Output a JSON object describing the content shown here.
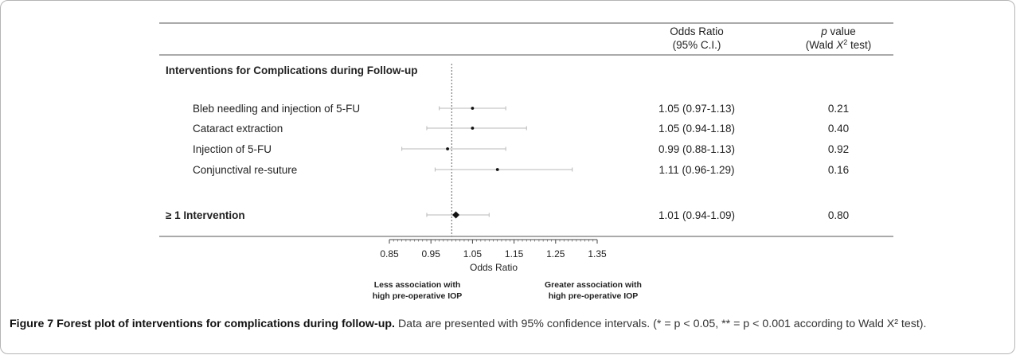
{
  "figure": {
    "caption_label": "Figure 7",
    "caption_title": "Forest plot of interventions for complications during follow-up.",
    "caption_text": "Data are presented with 95% confidence intervals. (* = p < 0.05, ** = p < 0.001 according to Wald X² test)."
  },
  "table": {
    "col_or_header_1": "Odds Ratio",
    "col_or_header_2": "(95% C.I.)",
    "col_p_header_1": "p value",
    "col_p_header_2": "(Wald X² test)",
    "section_title": "Interventions for Complications during Follow-up"
  },
  "annotations": {
    "left_line1": "Less association with",
    "left_line2": "high pre-operative IOP",
    "right_line1": "Greater association with",
    "right_line2": "high pre-operative IOP"
  },
  "chart_data": {
    "type": "forest",
    "xlabel": "Odds Ratio",
    "xlim": [
      0.85,
      1.35
    ],
    "x_ticks": [
      "0.85",
      "0.95",
      "1.05",
      "1.15",
      "1.25",
      "1.35"
    ],
    "reference_line": 1.0,
    "rows": [
      {
        "label": "Bleb needling and injection of 5-FU",
        "or": 1.05,
        "lo": 0.97,
        "hi": 1.13,
        "or_text": "1.05 (0.97-1.13)",
        "p": "0.21",
        "bold": false
      },
      {
        "label": "Cataract extraction",
        "or": 1.05,
        "lo": 0.94,
        "hi": 1.18,
        "or_text": "1.05 (0.94-1.18)",
        "p": "0.40",
        "bold": false
      },
      {
        "label": "Injection of 5-FU",
        "or": 0.99,
        "lo": 0.88,
        "hi": 1.13,
        "or_text": "0.99 (0.88-1.13)",
        "p": "0.92",
        "bold": false
      },
      {
        "label": "Conjunctival re-suture",
        "or": 1.11,
        "lo": 0.96,
        "hi": 1.29,
        "or_text": "1.11 (0.96-1.29)",
        "p": "0.16",
        "bold": false
      },
      {
        "label": "≥ 1 Intervention",
        "or": 1.01,
        "lo": 0.94,
        "hi": 1.09,
        "or_text": "1.01 (0.94-1.09)",
        "p": "0.80",
        "bold": true
      }
    ]
  }
}
